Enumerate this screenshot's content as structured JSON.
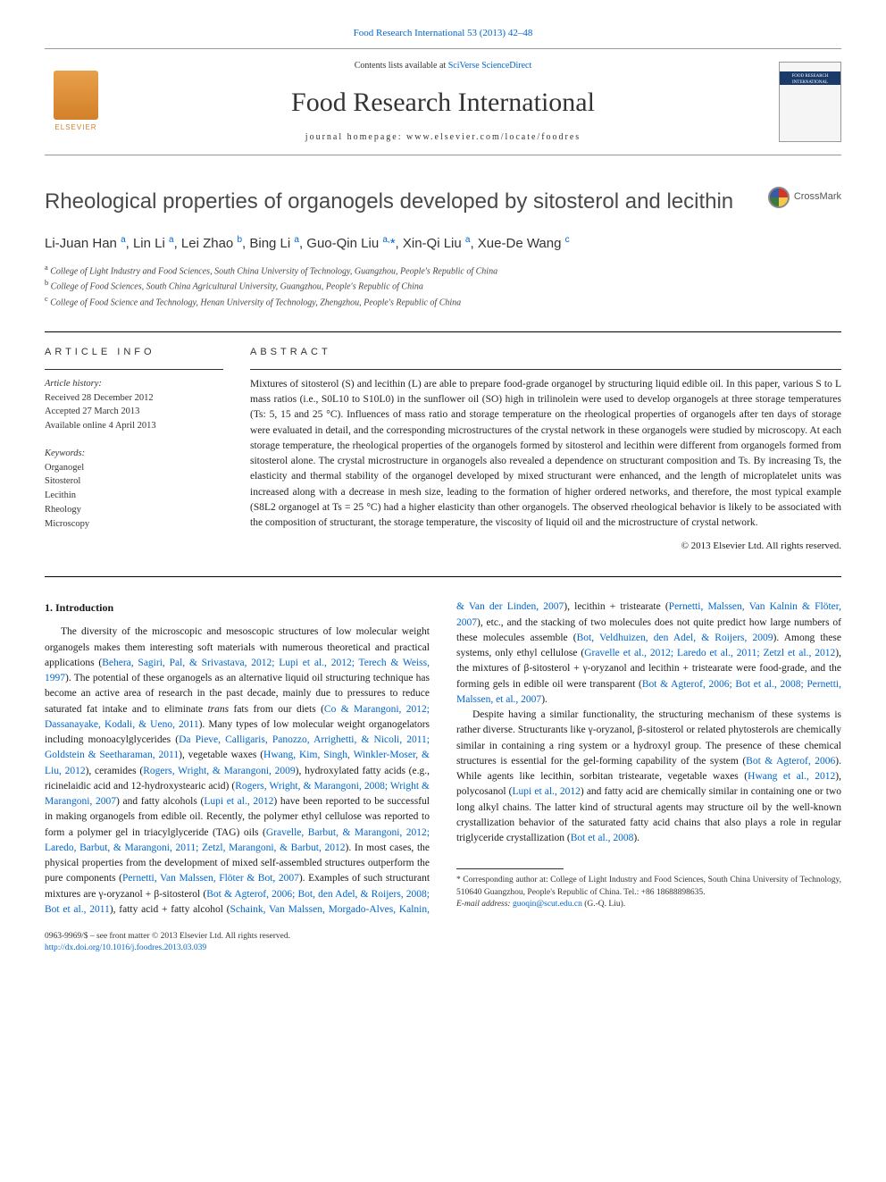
{
  "top_link": "Food Research International 53 (2013) 42–48",
  "header": {
    "contents_prefix": "Contents lists available at ",
    "contents_link": "SciVerse ScienceDirect",
    "journal_title": "Food Research International",
    "homepage": "journal homepage: www.elsevier.com/locate/foodres",
    "elsevier": "ELSEVIER",
    "cover_text": "FOOD RESEARCH INTERNATIONAL"
  },
  "crossmark_label": "CrossMark",
  "title": "Rheological properties of organogels developed by sitosterol and lecithin",
  "authors_html": "Li-Juan Han <sup>a</sup>, Lin Li <sup>a</sup>, Lei Zhao <sup>b</sup>, Bing Li <sup>a</sup>, Guo-Qin Liu <sup>a,</sup><span class='corr'>*</span>, Xin-Qi Liu <sup>a</sup>, Xue-De Wang <sup>c</sup>",
  "affiliations": {
    "a": "College of Light Industry and Food Sciences, South China University of Technology, Guangzhou, People's Republic of China",
    "b": "College of Food Sciences, South China Agricultural University, Guangzhou, People's Republic of China",
    "c": "College of Food Science and Technology, Henan University of Technology, Zhengzhou, People's Republic of China"
  },
  "article_info": {
    "heading": "ARTICLE INFO",
    "history_label": "Article history:",
    "received": "Received 28 December 2012",
    "accepted": "Accepted 27 March 2013",
    "online": "Available online 4 April 2013",
    "keywords_label": "Keywords:",
    "keywords": [
      "Organogel",
      "Sitosterol",
      "Lecithin",
      "Rheology",
      "Microscopy"
    ]
  },
  "abstract": {
    "heading": "ABSTRACT",
    "text": "Mixtures of sitosterol (S) and lecithin (L) are able to prepare food-grade organogel by structuring liquid edible oil. In this paper, various S to L mass ratios (i.e., S0L10 to S10L0) in the sunflower oil (SO) high in trilinolein were used to develop organogels at three storage temperatures (Ts: 5, 15 and 25 °C). Influences of mass ratio and storage temperature on the rheological properties of organogels after ten days of storage were evaluated in detail, and the corresponding microstructures of the crystal network in these organogels were studied by microscopy. At each storage temperature, the rheological properties of the organogels formed by sitosterol and lecithin were different from organogels formed from sitosterol alone. The crystal microstructure in organogels also revealed a dependence on structurant composition and Ts. By increasing Ts, the elasticity and thermal stability of the organogel developed by mixed structurant were enhanced, and the length of microplatelet units was increased along with a decrease in mesh size, leading to the formation of higher ordered networks, and therefore, the most typical example (S8L2 organogel at Ts = 25 °C) had a higher elasticity than other organogels. The observed rheological behavior is likely to be associated with the composition of structurant, the storage temperature, the viscosity of liquid oil and the microstructure of crystal network.",
    "copyright": "© 2013 Elsevier Ltd. All rights reserved."
  },
  "body": {
    "heading": "1. Introduction",
    "p1_pre": "The diversity of the microscopic and mesoscopic structures of low molecular weight organogels makes them interesting soft materials with numerous theoretical and practical applications (",
    "p1_cite1": "Behera, Sagiri, Pal, & Srivastava, 2012; Lupi et al., 2012; Terech & Weiss, 1997",
    "p1_mid1": "). The potential of these organogels as an alternative liquid oil structuring technique has become an active area of research in the past decade, mainly due to pressures to reduce saturated fat intake and to eliminate ",
    "p1_trans": "trans",
    "p1_mid2": " fats from our diets (",
    "p1_cite2": "Co & Marangoni, 2012; Dassanayake, Kodali, & Ueno, 2011",
    "p1_mid3": "). Many types of low molecular weight organogelators including monoacylglycerides (",
    "p1_cite3": "Da Pieve, Calligaris, Panozzo, Arrighetti, & Nicoli, 2011; Goldstein & Seetharaman, 2011",
    "p1_mid4": "), vegetable waxes (",
    "p1_cite4": "Hwang, Kim, Singh, Winkler-Moser, & Liu, 2012",
    "p1_mid5": "), ceramides (",
    "p1_cite5": "Rogers, Wright, & Marangoni, 2009",
    "p1_mid6": "), hydroxylated fatty acids (e.g., ricinelaidic acid and 12-hydroxystearic acid) (",
    "p1_cite6": "Rogers, Wright, & Marangoni, 2008; Wright & Marangoni, 2007",
    "p1_mid7": ") and fatty alcohols (",
    "p1_cite7": "Lupi et al., 2012",
    "p1_mid8": ") have been reported to be successful in making organogels from edible oil. Recently, the polymer ethyl cellulose was reported to form a polymer gel in triacylglyceride (TAG) oils (",
    "p1_cite8": "Gravelle, Barbut, & Marangoni, 2012; Laredo, Barbut, & Marangoni, 2011; Zetzl, Marangoni, & Barbut, 2012",
    "p1_mid9": "). In most cases, the physical properties from the development of mixed self-assembled structures outperform the pure components (",
    "p1_cite9": "Pernetti, Van Malssen, Flöter & Bot, 2007",
    "p1_mid10": "). Examples of such structurant mixtures are γ-oryzanol + β-sitosterol (",
    "p1_cite10": "Bot & Agterof, 2006; Bot, den Adel, & Roijers, 2008; Bot et al., 2011",
    "p1_mid11": "), fatty acid + fatty alcohol (",
    "p1_cite11": "Schaink, Van Malssen, Morgado-Alves, Kalnin, & Van der Linden, 2007",
    "p1_mid12": "), lecithin + tristearate (",
    "p1_cite12": "Pernetti, Malssen, Van Kalnin & Flöter, 2007",
    "p1_mid13": "), etc., and the stacking of two molecules does not quite predict how large numbers of these molecules assemble (",
    "p1_cite13": "Bot, Veldhuizen, den Adel, & Roijers, 2009",
    "p1_mid14": "). Among these systems, only ethyl cellulose (",
    "p1_cite14": "Gravelle et al., 2012; Laredo et al., 2011; Zetzl et al., 2012",
    "p1_mid15": "), the mixtures of β-sitosterol + γ-oryzanol and lecithin + tristearate were food-grade, and the forming gels in edible oil were transparent (",
    "p1_cite15": "Bot & Agterof, 2006; Bot et al., 2008; Pernetti, Malssen, et al., 2007",
    "p1_end": ").",
    "p2_pre": "Despite having a similar functionality, the structuring mechanism of these systems is rather diverse. Structurants like γ-oryzanol, β-sitosterol or related phytosterols are chemically similar in containing a ring system or a hydroxyl group. The presence of these chemical structures is essential for the gel-forming capability of the system (",
    "p2_cite1": "Bot & Agterof, 2006",
    "p2_mid1": "). While agents like lecithin, sorbitan tristearate, vegetable waxes (",
    "p2_cite2": "Hwang et al., 2012",
    "p2_mid2": "), polycosanol (",
    "p2_cite3": "Lupi et al., 2012",
    "p2_mid3": ") and fatty acid are chemically similar in containing one or two long alkyl chains. The latter kind of structural agents may structure oil by the well-known crystallization behavior of the saturated fatty acid chains that also plays a role in regular triglyceride crystallization (",
    "p2_cite4": "Bot et al., 2008",
    "p2_end": ")."
  },
  "footnotes": {
    "corr": "* Corresponding author at: College of Light Industry and Food Sciences, South China University of Technology, 510640 Guangzhou, People's Republic of China. Tel.: +86 18688898635.",
    "email_label": "E-mail address: ",
    "email": "guoqin@scut.edu.cn",
    "email_suffix": " (G.-Q. Liu)."
  },
  "bottom": {
    "line1": "0963-9969/$ – see front matter © 2013 Elsevier Ltd. All rights reserved.",
    "doi": "http://dx.doi.org/10.1016/j.foodres.2013.03.039"
  },
  "colors": {
    "link": "#0066cc",
    "elsevier_orange": "#d4802a",
    "text": "#1a1a1a",
    "heading_gray": "#4a4a4a"
  }
}
